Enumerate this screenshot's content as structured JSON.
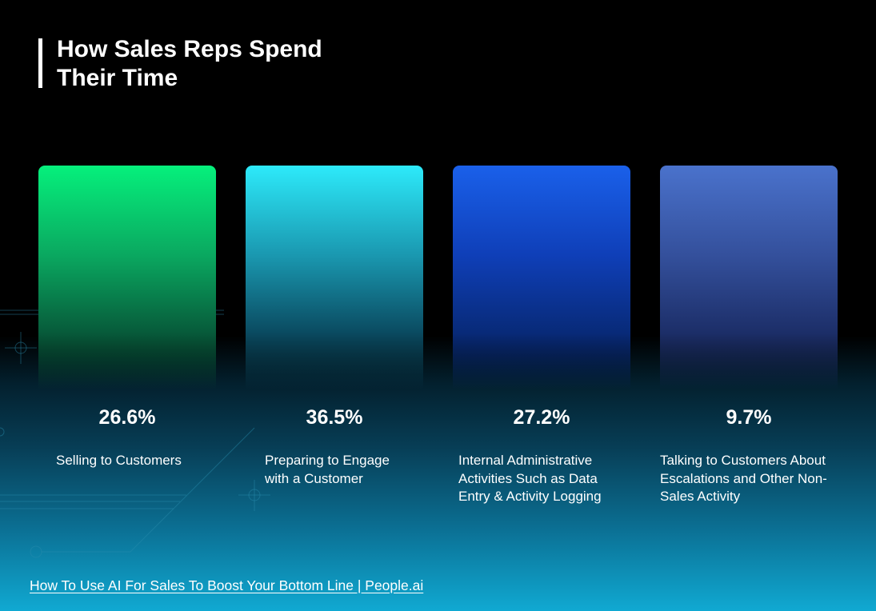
{
  "title": "How Sales Reps Spend Their Time",
  "title_lines": [
    "How Sales Reps Spend",
    "Their Time"
  ],
  "colors": {
    "card_1": "#06f07c",
    "card_2": "#2deafa",
    "card_3": "#1a60ea",
    "card_4": "#4a72cc",
    "background_top": "#000000",
    "background_bottom": "#10a9d2"
  },
  "chart_data": {
    "type": "table",
    "title": "How Sales Reps Spend Their Time",
    "categories": [
      "Selling to Customers",
      "Preparing to Engage with a Customer",
      "Internal Administrative Activities Such as Data Entry & Activity Logging",
      "Talking to Customers About Escalations and Other Non-Sales Activity"
    ],
    "values": [
      26.6,
      36.5,
      27.2,
      9.7
    ],
    "value_labels": [
      "26.6%",
      "36.5%",
      "27.2%",
      "9.7%"
    ]
  },
  "footer_link": "How To Use AI For Sales To Boost Your Bottom Line | People.ai"
}
